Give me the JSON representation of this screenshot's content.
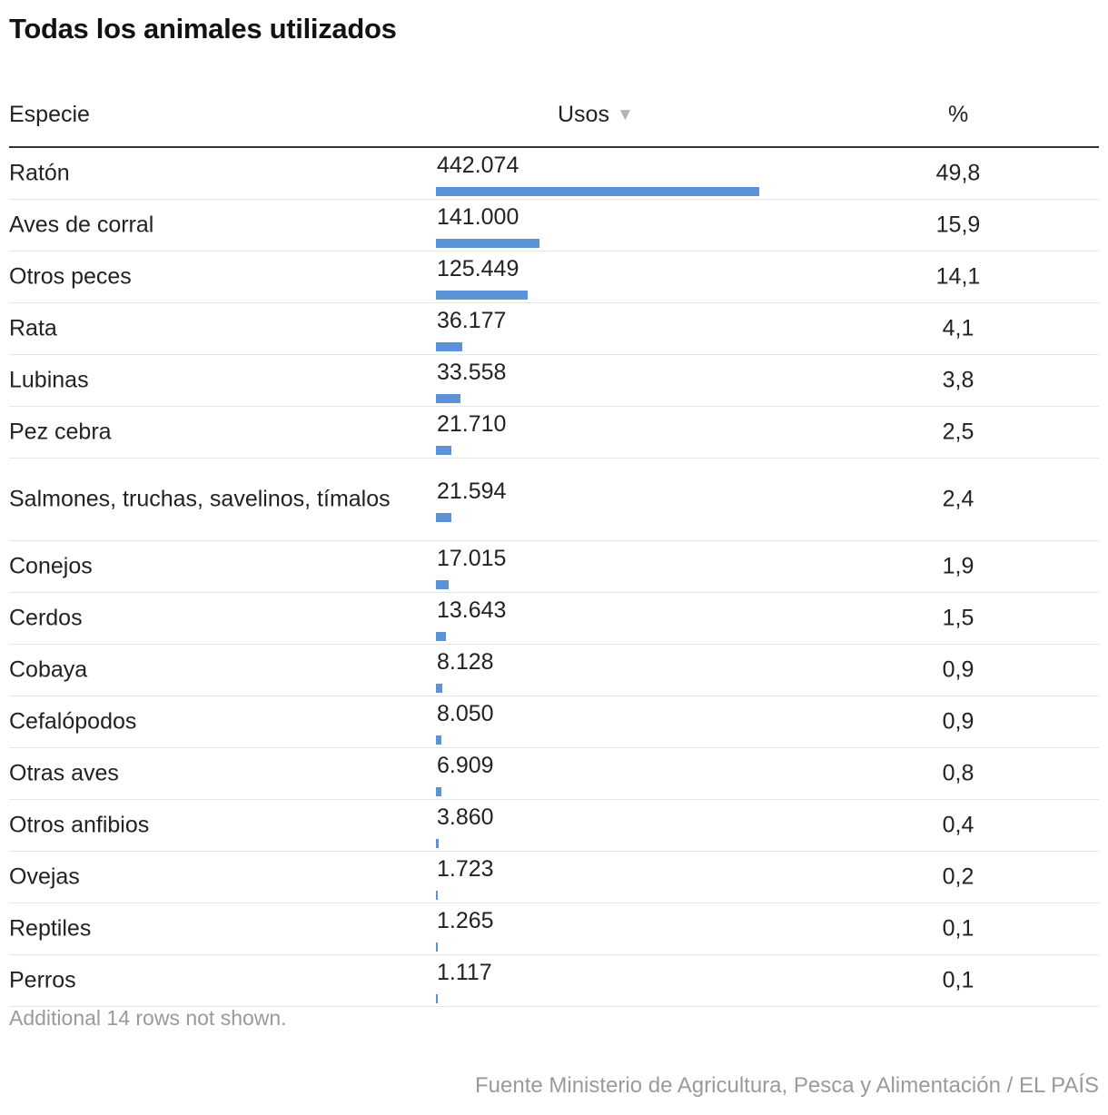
{
  "title": "Todas los animales utilizados",
  "header": {
    "species": "Especie",
    "uses": "Usos",
    "sort_icon": "▼",
    "pct": "%"
  },
  "chart_data": {
    "type": "table",
    "title": "Todas los animales utilizados",
    "columns": [
      "Especie",
      "Usos",
      "%"
    ],
    "bar_color": "#5b93d9",
    "max_value": 442074,
    "rows": [
      {
        "species": "Ratón",
        "uses": 442074,
        "uses_label": "442.074",
        "pct": "49,8"
      },
      {
        "species": "Aves de corral",
        "uses": 141000,
        "uses_label": "141.000",
        "pct": "15,9"
      },
      {
        "species": "Otros peces",
        "uses": 125449,
        "uses_label": "125.449",
        "pct": "14,1"
      },
      {
        "species": "Rata",
        "uses": 36177,
        "uses_label": "36.177",
        "pct": "4,1"
      },
      {
        "species": "Lubinas",
        "uses": 33558,
        "uses_label": "33.558",
        "pct": "3,8"
      },
      {
        "species": "Pez cebra",
        "uses": 21710,
        "uses_label": "21.710",
        "pct": "2,5"
      },
      {
        "species": "Salmones, truchas, savelinos, tímalos",
        "uses": 21594,
        "uses_label": "21.594",
        "pct": "2,4",
        "tall": true
      },
      {
        "species": "Conejos",
        "uses": 17015,
        "uses_label": "17.015",
        "pct": "1,9"
      },
      {
        "species": "Cerdos",
        "uses": 13643,
        "uses_label": "13.643",
        "pct": "1,5"
      },
      {
        "species": "Cobaya",
        "uses": 8128,
        "uses_label": "8.128",
        "pct": "0,9"
      },
      {
        "species": "Cefalópodos",
        "uses": 8050,
        "uses_label": "8.050",
        "pct": "0,9"
      },
      {
        "species": "Otras aves",
        "uses": 6909,
        "uses_label": "6.909",
        "pct": "0,8"
      },
      {
        "species": "Otros anfibios",
        "uses": 3860,
        "uses_label": "3.860",
        "pct": "0,4"
      },
      {
        "species": "Ovejas",
        "uses": 1723,
        "uses_label": "1.723",
        "pct": "0,2"
      },
      {
        "species": "Reptiles",
        "uses": 1265,
        "uses_label": "1.265",
        "pct": "0,1"
      },
      {
        "species": "Perros",
        "uses": 1117,
        "uses_label": "1.117",
        "pct": "0,1"
      }
    ]
  },
  "note": "Additional 14 rows not shown.",
  "source": "Fuente Ministerio de Agricultura, Pesca y Alimentación / EL PAÍS"
}
